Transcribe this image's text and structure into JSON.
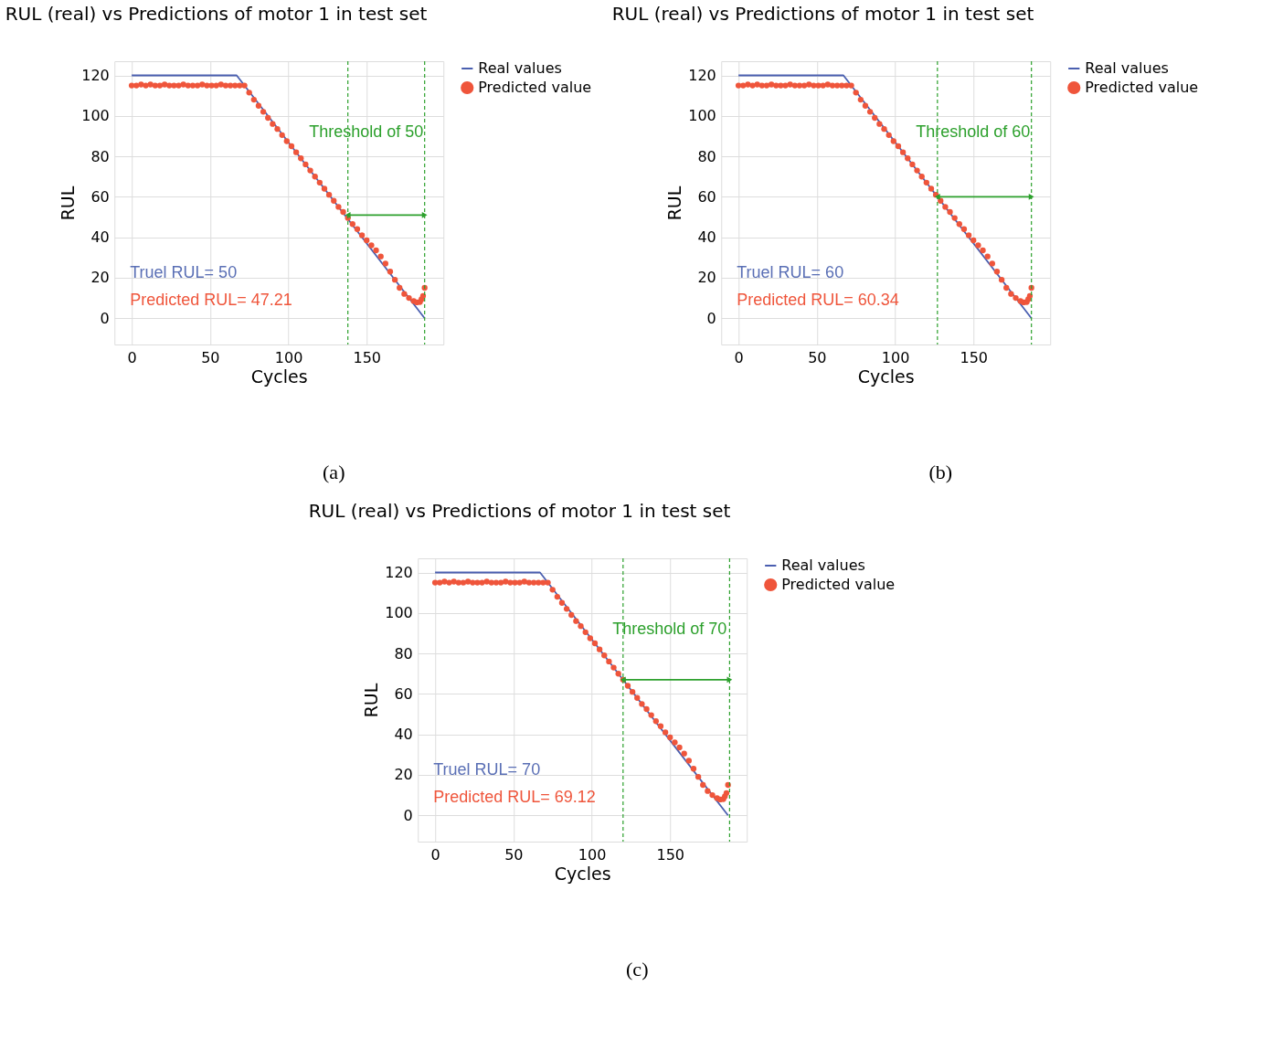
{
  "chart_data": [
    {
      "type": "line",
      "title": "RUL (real) vs Predictions of motor 1 in test set",
      "xlabel": "Cycles",
      "ylabel": "RUL",
      "xlim": [
        -11,
        199
      ],
      "ylim": [
        -13,
        127
      ],
      "xticks": [
        0,
        50,
        100,
        150
      ],
      "yticks": [
        0,
        20,
        40,
        60,
        80,
        100,
        120
      ],
      "grid": true,
      "legend": "top right",
      "series": [
        {
          "name": "Real values",
          "type": "line",
          "color": "#4a5fb0",
          "x": [
            0,
            67,
            187
          ],
          "values": [
            120,
            120,
            0
          ]
        },
        {
          "name": "Predicted value",
          "type": "scatter",
          "color": "#ef553b",
          "x": [
            0,
            3,
            6,
            9,
            12,
            15,
            18,
            21,
            24,
            27,
            30,
            33,
            36,
            39,
            42,
            45,
            48,
            51,
            54,
            57,
            60,
            63,
            66,
            69,
            72,
            75,
            78,
            81,
            84,
            87,
            90,
            93,
            96,
            99,
            102,
            105,
            108,
            111,
            114,
            117,
            120,
            123,
            126,
            129,
            132,
            135,
            138,
            141,
            144,
            147,
            150,
            153,
            156,
            159,
            162,
            165,
            168,
            171,
            174,
            177,
            180,
            182,
            184,
            185,
            186,
            187
          ],
          "values": [
            115,
            115,
            115.5,
            115,
            115.5,
            115,
            115,
            115.5,
            115,
            115,
            115,
            115.5,
            115,
            115,
            115,
            115.5,
            115,
            115,
            115,
            115.5,
            115,
            115,
            115,
            115,
            115,
            111.5,
            108,
            105,
            102,
            99,
            96,
            93.5,
            90.5,
            87.5,
            85,
            82,
            79,
            76,
            73,
            70,
            67,
            64,
            61,
            58,
            55,
            52.5,
            49.5,
            46.5,
            44,
            41,
            38.5,
            36,
            33.5,
            30.5,
            27,
            23,
            19,
            15,
            12,
            10,
            8.5,
            7.8,
            8,
            9.4,
            11,
            15
          ]
        },
        {
          "type": "line",
          "color": "#2ca02c",
          "marker": "triangle",
          "x": [
            138,
            187
          ],
          "values": [
            51,
            51
          ]
        }
      ],
      "ref_lines": [
        {
          "axis": "x",
          "value": 138,
          "color": "#2ca02c",
          "line_style": "dashed"
        },
        {
          "axis": "x",
          "value": 187,
          "color": "#2ca02c",
          "line_style": "dashed"
        }
      ],
      "annotations": [
        "Threshold of 50",
        "Truel RUL= 50",
        "Predicted RUL= 47.21",
        "(a)"
      ]
    },
    {
      "type": "line",
      "title": "RUL (real) vs Predictions of motor 1 in test set",
      "xlabel": "Cycles",
      "ylabel": "RUL",
      "xlim": [
        -11,
        199
      ],
      "ylim": [
        -13,
        127
      ],
      "xticks": [
        0,
        50,
        100,
        150
      ],
      "yticks": [
        0,
        20,
        40,
        60,
        80,
        100,
        120
      ],
      "grid": true,
      "legend": "top right",
      "series": [
        {
          "name": "Real values",
          "type": "line",
          "color": "#4a5fb0",
          "x": [
            0,
            67,
            187
          ],
          "values": [
            120,
            120,
            0
          ]
        },
        {
          "name": "Predicted value",
          "type": "scatter",
          "color": "#ef553b",
          "x": [
            0,
            3,
            6,
            9,
            12,
            15,
            18,
            21,
            24,
            27,
            30,
            33,
            36,
            39,
            42,
            45,
            48,
            51,
            54,
            57,
            60,
            63,
            66,
            69,
            72,
            75,
            78,
            81,
            84,
            87,
            90,
            93,
            96,
            99,
            102,
            105,
            108,
            111,
            114,
            117,
            120,
            123,
            126,
            129,
            132,
            135,
            138,
            141,
            144,
            147,
            150,
            153,
            156,
            159,
            162,
            165,
            168,
            171,
            174,
            177,
            180,
            182,
            184,
            185,
            186,
            187
          ],
          "values": [
            115,
            115,
            115.5,
            115,
            115.5,
            115,
            115,
            115.5,
            115,
            115,
            115,
            115.5,
            115,
            115,
            115,
            115.5,
            115,
            115,
            115,
            115.5,
            115,
            115,
            115,
            115,
            115,
            111.5,
            108,
            105,
            102,
            99,
            96,
            93.5,
            90.5,
            87.5,
            85,
            82,
            79,
            76,
            73,
            70,
            67,
            64,
            61,
            58,
            55,
            52.5,
            49.5,
            46.5,
            44,
            41,
            38.5,
            36,
            33.5,
            30.5,
            27,
            23,
            19,
            15,
            12,
            10,
            8.5,
            7.8,
            8,
            9.4,
            11,
            15
          ]
        },
        {
          "type": "line",
          "color": "#2ca02c",
          "marker": "triangle",
          "x": [
            127,
            187
          ],
          "values": [
            60,
            60
          ]
        }
      ],
      "ref_lines": [
        {
          "axis": "x",
          "value": 127,
          "color": "#2ca02c",
          "line_style": "dashed"
        },
        {
          "axis": "x",
          "value": 187,
          "color": "#2ca02c",
          "line_style": "dashed"
        }
      ],
      "annotations": [
        "Threshold of 60",
        "Truel RUL= 60",
        "Predicted RUL= 60.34",
        "(b)"
      ]
    },
    {
      "type": "line",
      "title": "RUL (real) vs Predictions of motor 1 in test set",
      "xlabel": "Cycles",
      "ylabel": "RUL",
      "xlim": [
        -11,
        199
      ],
      "ylim": [
        -13,
        127
      ],
      "xticks": [
        0,
        50,
        100,
        150
      ],
      "yticks": [
        0,
        20,
        40,
        60,
        80,
        100,
        120
      ],
      "grid": true,
      "legend": "top right",
      "series": [
        {
          "name": "Real values",
          "type": "line",
          "color": "#4a5fb0",
          "x": [
            0,
            67,
            187
          ],
          "values": [
            120,
            120,
            0
          ]
        },
        {
          "name": "Predicted value",
          "type": "scatter",
          "color": "#ef553b",
          "x": [
            0,
            3,
            6,
            9,
            12,
            15,
            18,
            21,
            24,
            27,
            30,
            33,
            36,
            39,
            42,
            45,
            48,
            51,
            54,
            57,
            60,
            63,
            66,
            69,
            72,
            75,
            78,
            81,
            84,
            87,
            90,
            93,
            96,
            99,
            102,
            105,
            108,
            111,
            114,
            117,
            120,
            123,
            126,
            129,
            132,
            135,
            138,
            141,
            144,
            147,
            150,
            153,
            156,
            159,
            162,
            165,
            168,
            171,
            174,
            177,
            180,
            182,
            184,
            185,
            186,
            187
          ],
          "values": [
            115,
            115,
            115.5,
            115,
            115.5,
            115,
            115,
            115.5,
            115,
            115,
            115,
            115.5,
            115,
            115,
            115,
            115.5,
            115,
            115,
            115,
            115.5,
            115,
            115,
            115,
            115,
            115,
            111.5,
            108,
            105,
            102,
            99,
            96,
            93.5,
            90.5,
            87.5,
            85,
            82,
            79,
            76,
            73,
            70,
            67,
            64,
            61,
            58,
            55,
            52.5,
            49.5,
            46.5,
            44,
            41,
            38.5,
            36,
            33.5,
            30.5,
            27,
            23,
            19,
            15,
            12,
            10,
            8.5,
            7.8,
            8,
            9.4,
            11,
            15
          ]
        },
        {
          "type": "line",
          "color": "#2ca02c",
          "marker": "triangle",
          "x": [
            120,
            188
          ],
          "values": [
            67,
            67
          ]
        }
      ],
      "ref_lines": [
        {
          "axis": "x",
          "value": 120,
          "color": "#2ca02c",
          "line_style": "dashed"
        },
        {
          "axis": "x",
          "value": 188,
          "color": "#2ca02c",
          "line_style": "dashed"
        }
      ],
      "annotations": [
        "Threshold of 70",
        "Truel RUL= 70",
        "Predicted RUL= 69.12",
        "(c)"
      ]
    }
  ]
}
